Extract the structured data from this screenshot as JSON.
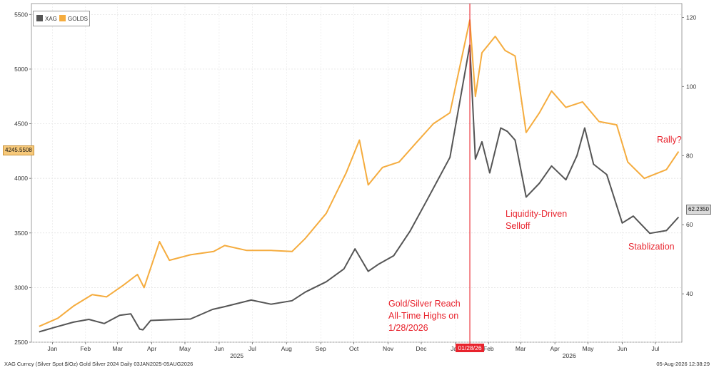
{
  "chart_data": {
    "type": "line",
    "legend": {
      "placement": "top-left",
      "entries": [
        "XAG",
        "GOLDS"
      ]
    },
    "series": [
      {
        "name": "XAG",
        "axis": "right",
        "color": "#555555",
        "points": [
          [
            "2025-01-03",
            29.0
          ],
          [
            "2025-01-17",
            30.3
          ],
          [
            "2025-02-03",
            31.8
          ],
          [
            "2025-02-17",
            32.6
          ],
          [
            "2025-03-03",
            31.4
          ],
          [
            "2025-03-17",
            33.8
          ],
          [
            "2025-03-27",
            34.2
          ],
          [
            "2025-04-04",
            29.8
          ],
          [
            "2025-04-07",
            29.6
          ],
          [
            "2025-04-14",
            32.3
          ],
          [
            "2025-05-01",
            32.5
          ],
          [
            "2025-05-20",
            32.7
          ],
          [
            "2025-06-09",
            35.5
          ],
          [
            "2025-06-20",
            36.3
          ],
          [
            "2025-07-14",
            38.2
          ],
          [
            "2025-08-01",
            37.0
          ],
          [
            "2025-08-20",
            38.0
          ],
          [
            "2025-09-01",
            40.5
          ],
          [
            "2025-09-20",
            43.5
          ],
          [
            "2025-10-06",
            47.2
          ],
          [
            "2025-10-16",
            53.0
          ],
          [
            "2025-10-28",
            46.5
          ],
          [
            "2025-11-06",
            48.5
          ],
          [
            "2025-11-20",
            51.0
          ],
          [
            "2025-12-05",
            58.2
          ],
          [
            "2025-12-20",
            67.0
          ],
          [
            "2026-01-10",
            79.5
          ],
          [
            "2026-01-28",
            112.0
          ],
          [
            "2026-02-02",
            79.0
          ],
          [
            "2026-02-08",
            84.0
          ],
          [
            "2026-02-15",
            75.0
          ],
          [
            "2026-02-25",
            88.0
          ],
          [
            "2026-03-03",
            87.0
          ],
          [
            "2026-03-10",
            84.5
          ],
          [
            "2026-03-20",
            68.0
          ],
          [
            "2026-04-01",
            72.0
          ],
          [
            "2026-04-12",
            77.0
          ],
          [
            "2026-04-25",
            73.0
          ],
          [
            "2026-05-05",
            80.0
          ],
          [
            "2026-05-12",
            88.0
          ],
          [
            "2026-05-20",
            77.5
          ],
          [
            "2026-06-01",
            74.5
          ],
          [
            "2026-06-15",
            60.5
          ],
          [
            "2026-06-25",
            62.5
          ],
          [
            "2026-07-10",
            57.5
          ],
          [
            "2026-07-25",
            58.3
          ],
          [
            "2026-08-05",
            62.2
          ]
        ]
      },
      {
        "name": "GOLDS",
        "axis": "left",
        "color": "#f5ac3e",
        "points": [
          [
            "2025-01-03",
            2645
          ],
          [
            "2025-01-20",
            2720
          ],
          [
            "2025-02-03",
            2830
          ],
          [
            "2025-02-20",
            2935
          ],
          [
            "2025-03-05",
            2915
          ],
          [
            "2025-03-20",
            3020
          ],
          [
            "2025-04-02",
            3120
          ],
          [
            "2025-04-08",
            3000
          ],
          [
            "2025-04-22",
            3420
          ],
          [
            "2025-05-01",
            3250
          ],
          [
            "2025-05-20",
            3300
          ],
          [
            "2025-06-10",
            3330
          ],
          [
            "2025-06-20",
            3385
          ],
          [
            "2025-07-10",
            3340
          ],
          [
            "2025-08-01",
            3340
          ],
          [
            "2025-08-20",
            3330
          ],
          [
            "2025-09-01",
            3450
          ],
          [
            "2025-09-20",
            3680
          ],
          [
            "2025-10-08",
            4050
          ],
          [
            "2025-10-20",
            4350
          ],
          [
            "2025-10-28",
            3940
          ],
          [
            "2025-11-10",
            4100
          ],
          [
            "2025-11-25",
            4150
          ],
          [
            "2025-12-10",
            4320
          ],
          [
            "2025-12-26",
            4500
          ],
          [
            "2026-01-10",
            4600
          ],
          [
            "2026-01-28",
            5450
          ],
          [
            "2026-02-02",
            4750
          ],
          [
            "2026-02-08",
            5150
          ],
          [
            "2026-02-20",
            5300
          ],
          [
            "2026-03-01",
            5170
          ],
          [
            "2026-03-10",
            5120
          ],
          [
            "2026-03-20",
            4420
          ],
          [
            "2026-04-01",
            4600
          ],
          [
            "2026-04-12",
            4800
          ],
          [
            "2026-04-25",
            4650
          ],
          [
            "2026-05-10",
            4700
          ],
          [
            "2026-05-25",
            4520
          ],
          [
            "2026-06-10",
            4490
          ],
          [
            "2026-06-20",
            4150
          ],
          [
            "2026-07-05",
            4000
          ],
          [
            "2026-07-25",
            4080
          ],
          [
            "2026-08-05",
            4245
          ]
        ]
      }
    ],
    "y_left": {
      "range": [
        2500,
        5600
      ],
      "ticks": [
        "2500",
        "3000",
        "3500",
        "4000",
        "4500",
        "5000",
        "5500"
      ]
    },
    "y_right": {
      "range": [
        26,
        124
      ],
      "ticks": [
        "40",
        "60",
        "80",
        "100",
        "120"
      ]
    },
    "x_range": [
      "2024-12-27",
      "2026-08-08"
    ],
    "x_months": [
      {
        "date": "2025-01-15",
        "label": "Jan"
      },
      {
        "date": "2025-02-14",
        "label": "Feb"
      },
      {
        "date": "2025-03-15",
        "label": "Mar"
      },
      {
        "date": "2025-04-15",
        "label": "Apr"
      },
      {
        "date": "2025-05-15",
        "label": "May"
      },
      {
        "date": "2025-06-15",
        "label": "Jun"
      },
      {
        "date": "2025-07-15",
        "label": "Jul"
      },
      {
        "date": "2025-08-15",
        "label": "Aug"
      },
      {
        "date": "2025-09-15",
        "label": "Sep"
      },
      {
        "date": "2025-10-15",
        "label": "Oct"
      },
      {
        "date": "2025-11-15",
        "label": "Nov"
      },
      {
        "date": "2025-12-15",
        "label": "Dec"
      },
      {
        "date": "2026-01-15",
        "label": "Jan"
      },
      {
        "date": "2026-02-14",
        "label": "Feb"
      },
      {
        "date": "2026-03-15",
        "label": "Mar"
      },
      {
        "date": "2026-04-15",
        "label": "Apr"
      },
      {
        "date": "2026-05-15",
        "label": "May"
      },
      {
        "date": "2026-06-15",
        "label": "Jun"
      },
      {
        "date": "2026-07-15",
        "label": "Jul"
      }
    ],
    "x_years": [
      {
        "date": "2025-07-01",
        "label": "2025"
      },
      {
        "date": "2026-04-28",
        "label": "2026"
      }
    ],
    "marker": {
      "date": "2026-01-28",
      "label": "01/28/26"
    },
    "last_value_tags": {
      "left": "4245.5508",
      "right": "62.2350"
    },
    "annotations": [
      {
        "id": "ath",
        "text": "Gold/Silver Reach\nAll-Time Highs on\n1/28/2026"
      },
      {
        "id": "selloff",
        "text": "Liquidity-Driven\nSelloff"
      },
      {
        "id": "stab",
        "text": "Stablization"
      },
      {
        "id": "rally",
        "text": "Rally?"
      }
    ],
    "grid": true
  },
  "footer": {
    "left": "XAG Curncy (Silver Spot  $/Oz) Gold Silver 2024 Daily 03JAN2025-05AUG2026",
    "right": "05-Aug-2026 12:38:29"
  },
  "colors": {
    "accent": "#e8232d",
    "gold": "#f5ac3e",
    "silver": "#555555",
    "grid": "#dcdcdc",
    "tag_gold": "#f7c97a",
    "tag_silver": "#d9d9d9"
  }
}
